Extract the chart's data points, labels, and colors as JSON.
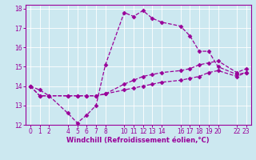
{
  "xlabel": "Windchill (Refroidissement éolien,°C)",
  "background_color": "#cce8f0",
  "line_color": "#990099",
  "grid_color": "#ffffff",
  "xlim": [
    -0.5,
    23.5
  ],
  "ylim": [
    12,
    18.2
  ],
  "xticks": [
    0,
    1,
    2,
    4,
    5,
    6,
    7,
    8,
    10,
    11,
    12,
    13,
    14,
    16,
    17,
    18,
    19,
    20,
    22,
    23
  ],
  "yticks": [
    12,
    13,
    14,
    15,
    16,
    17,
    18
  ],
  "line1_x": [
    0,
    1,
    2,
    4,
    5,
    6,
    7,
    8,
    10,
    11,
    12,
    13,
    14,
    16,
    17,
    18,
    19,
    20,
    22,
    23
  ],
  "line1_y": [
    14.0,
    13.8,
    13.5,
    12.6,
    12.1,
    12.5,
    13.0,
    15.1,
    17.8,
    17.6,
    17.9,
    17.5,
    17.3,
    17.1,
    16.6,
    15.8,
    15.8,
    15.0,
    14.6,
    14.7
  ],
  "line2_x": [
    0,
    1,
    2,
    4,
    5,
    6,
    7,
    8,
    10,
    11,
    12,
    13,
    14,
    16,
    17,
    18,
    19,
    20,
    22,
    23
  ],
  "line2_y": [
    14.0,
    13.5,
    13.5,
    13.5,
    13.5,
    13.5,
    13.5,
    13.6,
    14.1,
    14.3,
    14.5,
    14.6,
    14.7,
    14.8,
    14.9,
    15.1,
    15.2,
    15.3,
    14.7,
    14.9
  ],
  "line3_x": [
    0,
    1,
    2,
    4,
    5,
    6,
    7,
    8,
    10,
    11,
    12,
    13,
    14,
    16,
    17,
    18,
    19,
    20,
    22,
    23
  ],
  "line3_y": [
    14.0,
    13.5,
    13.5,
    13.5,
    13.5,
    13.5,
    13.5,
    13.6,
    13.8,
    13.9,
    14.0,
    14.1,
    14.2,
    14.3,
    14.4,
    14.5,
    14.7,
    14.8,
    14.5,
    14.7
  ],
  "tick_fontsize": 5.5,
  "xlabel_fontsize": 6.0,
  "marker": "D",
  "markersize": 2.5,
  "linewidth": 0.9
}
